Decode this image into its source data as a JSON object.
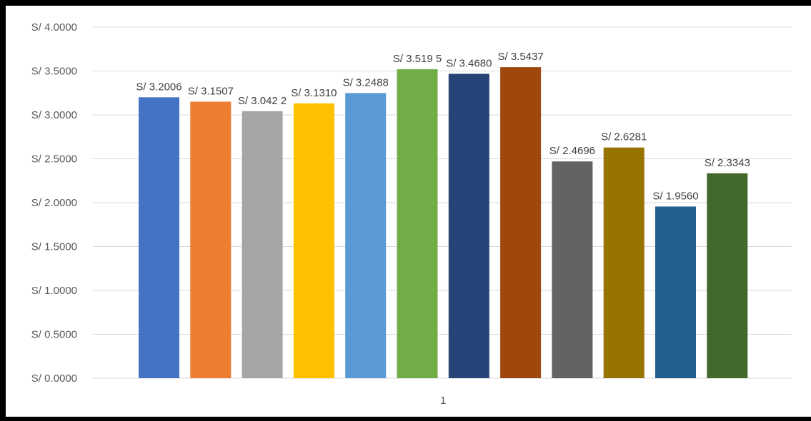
{
  "chart_data": {
    "type": "bar",
    "categories": [
      "1"
    ],
    "series": [
      {
        "values": [
          3.2006
        ],
        "label": "S/ 3.2006",
        "color": "#4472c4"
      },
      {
        "values": [
          3.1507
        ],
        "label": "S/  3.1507",
        "color": "#ed7d31"
      },
      {
        "values": [
          3.0422
        ],
        "label": "S/ 3.042 2",
        "color": "#a5a5a5"
      },
      {
        "values": [
          3.131
        ],
        "label": "S/ 3.1310",
        "color": "#ffc000"
      },
      {
        "values": [
          3.2488
        ],
        "label": "S/ 3.2488",
        "color": "#5b9bd5"
      },
      {
        "values": [
          3.5195
        ],
        "label": "S/ 3.519 5",
        "color": "#70ad47"
      },
      {
        "values": [
          3.468
        ],
        "label": "S/ 3.4680",
        "color": "#264478"
      },
      {
        "values": [
          3.5437
        ],
        "label": "S/  3.5437",
        "color": "#9e480e"
      },
      {
        "values": [
          2.4696
        ],
        "label": "S/ 2.4696",
        "color": "#636363"
      },
      {
        "values": [
          2.6281
        ],
        "label": "S/ 2.6281",
        "color": "#997300"
      },
      {
        "values": [
          1.956
        ],
        "label": "S/ 1.9560",
        "color": "#255e91"
      },
      {
        "values": [
          2.3343
        ],
        "label": "S/ 2.3343",
        "color": "#43682b"
      }
    ],
    "yticks": [
      {
        "value": 0,
        "label": "S/ 0.0000"
      },
      {
        "value": 0.5,
        "label": "S/ 0.5000"
      },
      {
        "value": 1,
        "label": "S/ 1.0000"
      },
      {
        "value": 1.5,
        "label": "S/ 1.5000"
      },
      {
        "value": 2,
        "label": "S/ 2.0000"
      },
      {
        "value": 2.5,
        "label": "S/ 2.5000"
      },
      {
        "value": 3,
        "label": "S/ 3.0000"
      },
      {
        "value": 3.5,
        "label": "S/ 3.5000"
      },
      {
        "value": 4,
        "label": "S/ 4.0000"
      }
    ],
    "ylim": [
      0,
      4
    ],
    "grid": true,
    "legend": "none"
  }
}
